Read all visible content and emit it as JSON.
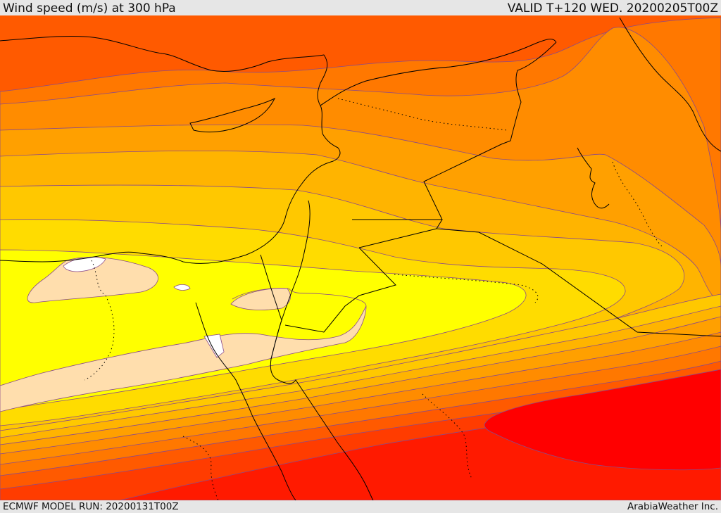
{
  "header": {
    "title": "Wind speed (m/s) at 300 hPa",
    "valid": "VALID T+120 WED. 20200205T00Z"
  },
  "footer": {
    "model_run": "ECMWF MODEL RUN: 20200131T00Z",
    "credit": "ArabiaWeather Inc."
  },
  "colors": {
    "very_strong": "#ff0000",
    "strong_red": "#ff1a00",
    "red_orange": "#ff3c00",
    "orange_red": "#ff5a00",
    "orange": "#ff7800",
    "orange_light": "#ff8c00",
    "amber": "#ffa000",
    "amber_light": "#ffb400",
    "gold": "#ffc800",
    "yellow_gold": "#ffdc00",
    "yellow": "#ffff00",
    "calm": "#ffdead",
    "very_calm": "#ffffff"
  }
}
